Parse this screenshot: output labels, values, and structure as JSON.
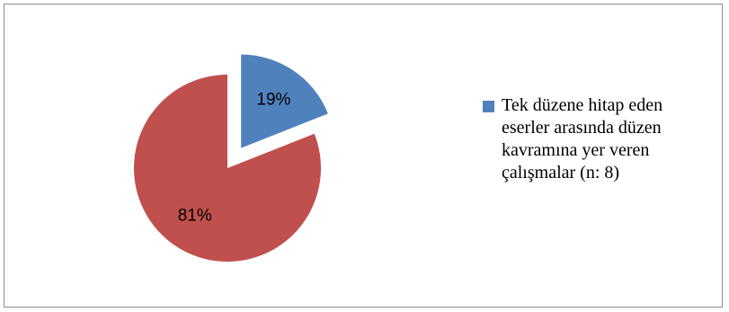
{
  "chart_data": {
    "type": "pie",
    "title": "",
    "slices": [
      {
        "label": "Tek düzene hitap eden eserler arasında düzen kavramına yer veren çalışmalar (n: 8)",
        "value": 19,
        "display": "19%",
        "color": "#4f81bd",
        "exploded": true
      },
      {
        "label": "",
        "value": 81,
        "display": "81%",
        "color": "#c0504d",
        "exploded": false
      }
    ],
    "legend_position": "right"
  }
}
